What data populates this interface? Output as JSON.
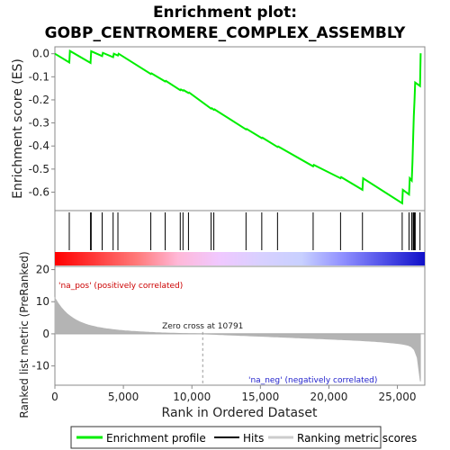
{
  "chart_data": {
    "type": "line",
    "title_line1": "Enrichment plot:",
    "title_line2": "GOBP_CENTROMERE_COMPLEX_ASSEMBLY",
    "es_ylabel": "Enrichment score (ES)",
    "es_ylim": [
      -0.68,
      0.03
    ],
    "es_yticks": [
      0.0,
      -0.1,
      -0.2,
      -0.3,
      -0.4,
      -0.5,
      -0.6
    ],
    "es_ytick_labels": [
      "0.0",
      "-0.1",
      "-0.2",
      "-0.3",
      "-0.4",
      "-0.5",
      "-0.6"
    ],
    "xlim": [
      0,
      27000
    ],
    "xticks": [
      0,
      5000,
      10000,
      15000,
      20000,
      25000
    ],
    "xtick_labels": [
      "0",
      "5,000",
      "10,000",
      "15,000",
      "20,000",
      "25,000"
    ],
    "xlabel": "Rank in Ordered Dataset",
    "metric_ylabel": "Ranked list metric (PreRanked)",
    "metric_ylim": [
      -16,
      21
    ],
    "metric_yticks": [
      20,
      10,
      0,
      -10
    ],
    "metric_ytick_labels": [
      "20",
      "10",
      "0",
      "-10"
    ],
    "zero_cross_rank": 10791,
    "zero_cross_label": "Zero cross at 10791",
    "pos_label": "'na_pos' (positively correlated)",
    "neg_label": "'na_neg' (negatively correlated)",
    "enrichment_profile": {
      "x": [
        0,
        1050,
        1100,
        2600,
        2650,
        3450,
        3500,
        4250,
        4300,
        4600,
        4650,
        7000,
        7050,
        8050,
        8100,
        9150,
        9200,
        9350,
        9400,
        9750,
        9800,
        11400,
        11450,
        11600,
        11650,
        13950,
        14000,
        15100,
        15150,
        16250,
        16300,
        18850,
        18900,
        20850,
        20900,
        22450,
        22500,
        25350,
        25400,
        25850,
        25900,
        26050,
        26100,
        26150,
        26200,
        26250,
        26300,
        26650,
        26700
      ],
      "y": [
        0.0,
        -0.038,
        0.012,
        -0.04,
        0.011,
        -0.01,
        0.004,
        -0.015,
        0.0,
        -0.008,
        0.0,
        -0.088,
        -0.085,
        -0.12,
        -0.118,
        -0.158,
        -0.155,
        -0.16,
        -0.158,
        -0.17,
        -0.168,
        -0.238,
        -0.236,
        -0.243,
        -0.241,
        -0.328,
        -0.326,
        -0.366,
        -0.364,
        -0.404,
        -0.402,
        -0.488,
        -0.482,
        -0.54,
        -0.535,
        -0.59,
        -0.54,
        -0.648,
        -0.59,
        -0.61,
        -0.54,
        -0.55,
        -0.47,
        -0.36,
        -0.27,
        -0.2,
        -0.125,
        -0.14,
        0.002
      ]
    },
    "hits": [
      1050,
      2600,
      2650,
      3450,
      4250,
      4600,
      7000,
      8050,
      9150,
      9350,
      9750,
      11400,
      11600,
      13950,
      15100,
      16250,
      18850,
      20850,
      22450,
      25350,
      25850,
      26050,
      26150,
      26200,
      26250,
      26300,
      26650
    ],
    "colors": {
      "profile": "#00ee00",
      "hits": "#000000",
      "metric_fill": "#b4b4b4",
      "zero_line": "#aaaaaa",
      "band_stops": [
        "#ff0000",
        "#ff3c3c",
        "#ff7a7a",
        "#ffb8d8",
        "#f0c8ff",
        "#d8d0ff",
        "#c8d0ff",
        "#9090ff",
        "#5050e8",
        "#1010c8"
      ]
    },
    "legend": {
      "items": [
        {
          "label": "Enrichment profile",
          "color": "#00ee00"
        },
        {
          "label": "Hits",
          "color": "#000000"
        },
        {
          "label": "Ranking metric scores",
          "color": "#cccccc"
        }
      ]
    }
  }
}
